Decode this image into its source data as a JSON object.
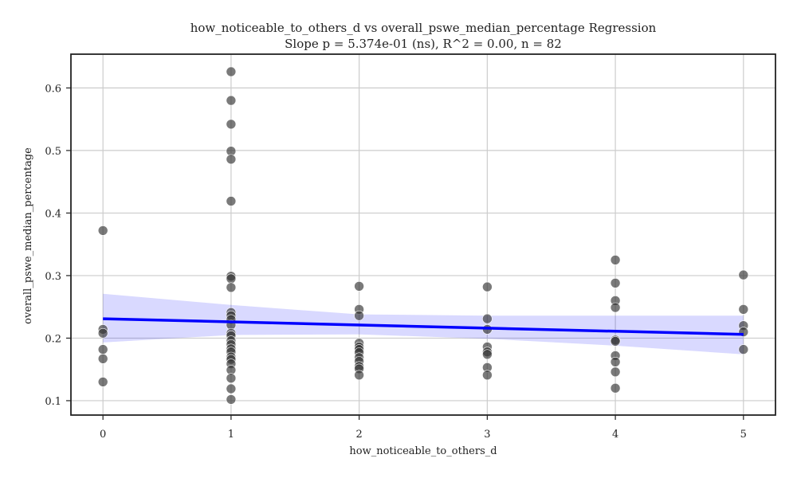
{
  "chart_data": {
    "type": "scatter",
    "title": "how_noticeable_to_others_d vs overall_pswe_median_percentage Regression",
    "subtitle": "Slope p = 5.374e-01 (ns), R^2 = 0.00, n = 82",
    "xlabel": "how_noticeable_to_others_d",
    "ylabel": "overall_pswe_median_percentage",
    "xlim": [
      -0.25,
      5.25
    ],
    "ylim": [
      0.077,
      0.654
    ],
    "xticks": [
      0,
      1,
      2,
      3,
      4,
      5
    ],
    "xtick_labels": [
      "0",
      "1",
      "2",
      "3",
      "4",
      "5"
    ],
    "yticks": [
      0.1,
      0.2,
      0.3,
      0.4,
      0.5,
      0.6
    ],
    "ytick_labels": [
      "0.1",
      "0.2",
      "0.3",
      "0.4",
      "0.5",
      "0.6"
    ],
    "grid": true,
    "colors": {
      "points": "#333333",
      "regression_line": "#0000ff",
      "confidence_band": "#0000ff"
    },
    "points": [
      {
        "x": 0,
        "y": 0.372
      },
      {
        "x": 0,
        "y": 0.214
      },
      {
        "x": 0,
        "y": 0.208
      },
      {
        "x": 0,
        "y": 0.182
      },
      {
        "x": 0,
        "y": 0.167
      },
      {
        "x": 0,
        "y": 0.13
      },
      {
        "x": 1,
        "y": 0.626
      },
      {
        "x": 1,
        "y": 0.58
      },
      {
        "x": 1,
        "y": 0.542
      },
      {
        "x": 1,
        "y": 0.499
      },
      {
        "x": 1,
        "y": 0.486
      },
      {
        "x": 1,
        "y": 0.419
      },
      {
        "x": 1,
        "y": 0.299
      },
      {
        "x": 1,
        "y": 0.295
      },
      {
        "x": 1,
        "y": 0.281
      },
      {
        "x": 1,
        "y": 0.241
      },
      {
        "x": 1,
        "y": 0.236
      },
      {
        "x": 1,
        "y": 0.23
      },
      {
        "x": 1,
        "y": 0.221
      },
      {
        "x": 1,
        "y": 0.208
      },
      {
        "x": 1,
        "y": 0.204
      },
      {
        "x": 1,
        "y": 0.196
      },
      {
        "x": 1,
        "y": 0.19
      },
      {
        "x": 1,
        "y": 0.183
      },
      {
        "x": 1,
        "y": 0.178
      },
      {
        "x": 1,
        "y": 0.17
      },
      {
        "x": 1,
        "y": 0.166
      },
      {
        "x": 1,
        "y": 0.159
      },
      {
        "x": 1,
        "y": 0.149
      },
      {
        "x": 1,
        "y": 0.136
      },
      {
        "x": 1,
        "y": 0.119
      },
      {
        "x": 1,
        "y": 0.102
      },
      {
        "x": 2,
        "y": 0.283
      },
      {
        "x": 2,
        "y": 0.246
      },
      {
        "x": 2,
        "y": 0.236
      },
      {
        "x": 2,
        "y": 0.192
      },
      {
        "x": 2,
        "y": 0.186
      },
      {
        "x": 2,
        "y": 0.182
      },
      {
        "x": 2,
        "y": 0.177
      },
      {
        "x": 2,
        "y": 0.169
      },
      {
        "x": 2,
        "y": 0.163
      },
      {
        "x": 2,
        "y": 0.155
      },
      {
        "x": 2,
        "y": 0.151
      },
      {
        "x": 2,
        "y": 0.141
      },
      {
        "x": 3,
        "y": 0.282
      },
      {
        "x": 3,
        "y": 0.231
      },
      {
        "x": 3,
        "y": 0.214
      },
      {
        "x": 3,
        "y": 0.186
      },
      {
        "x": 3,
        "y": 0.178
      },
      {
        "x": 3,
        "y": 0.174
      },
      {
        "x": 3,
        "y": 0.153
      },
      {
        "x": 3,
        "y": 0.141
      },
      {
        "x": 4,
        "y": 0.325
      },
      {
        "x": 4,
        "y": 0.288
      },
      {
        "x": 4,
        "y": 0.26
      },
      {
        "x": 4,
        "y": 0.249
      },
      {
        "x": 4,
        "y": 0.197
      },
      {
        "x": 4,
        "y": 0.195
      },
      {
        "x": 4,
        "y": 0.172
      },
      {
        "x": 4,
        "y": 0.162
      },
      {
        "x": 4,
        "y": 0.146
      },
      {
        "x": 4,
        "y": 0.12
      },
      {
        "x": 5,
        "y": 0.301
      },
      {
        "x": 5,
        "y": 0.246
      },
      {
        "x": 5,
        "y": 0.22
      },
      {
        "x": 5,
        "y": 0.21
      },
      {
        "x": 5,
        "y": 0.182
      }
    ],
    "regression_line": {
      "x": [
        0,
        5
      ],
      "y": [
        0.231,
        0.206
      ]
    },
    "confidence_band": {
      "x": [
        0,
        1,
        2,
        3,
        4,
        5
      ],
      "lower": [
        0.193,
        0.205,
        0.206,
        0.199,
        0.188,
        0.174
      ],
      "upper": [
        0.271,
        0.253,
        0.238,
        0.236,
        0.236,
        0.236
      ]
    }
  }
}
